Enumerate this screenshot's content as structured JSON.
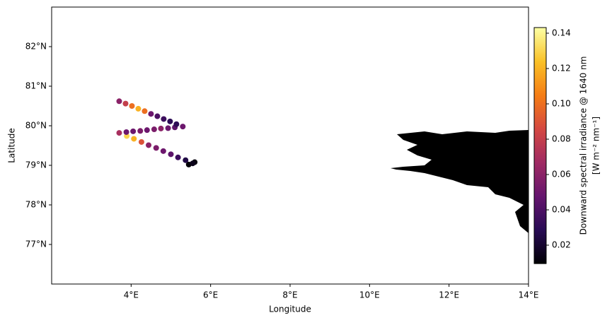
{
  "chart_data": {
    "type": "scatter",
    "xlabel": "Longitude",
    "ylabel": "Latitude",
    "xlim": [
      2,
      14
    ],
    "ylim": [
      76,
      83
    ],
    "xticks": [
      {
        "value": 4,
        "label": "4°E"
      },
      {
        "value": 6,
        "label": "6°E"
      },
      {
        "value": 8,
        "label": "8°E"
      },
      {
        "value": 10,
        "label": "10°E"
      },
      {
        "value": 12,
        "label": "12°E"
      },
      {
        "value": 14,
        "label": "14°E"
      }
    ],
    "yticks": [
      {
        "value": 77,
        "label": "77°N"
      },
      {
        "value": 78,
        "label": "78°N"
      },
      {
        "value": 79,
        "label": "79°N"
      },
      {
        "value": 80,
        "label": "80°N"
      },
      {
        "value": 81,
        "label": "81°N"
      },
      {
        "value": 82,
        "label": "82°N"
      }
    ],
    "colormap": "inferno",
    "colorbar_label": [
      "Downward spectral irradiance @ 1640 nm",
      "[W m⁻² nm⁻¹]"
    ],
    "clim": [
      0.0096,
      0.1432
    ],
    "cticks": [
      0.02,
      0.04,
      0.06,
      0.08,
      {
        "value": 0.1,
        "label": "0.10"
      },
      0.12,
      0.14
    ],
    "x": [
      5.45,
      5.6,
      5.55,
      5.37,
      5.18,
      5.0,
      4.81,
      4.63,
      4.44,
      4.26,
      4.07,
      3.89,
      3.7,
      3.88,
      4.05,
      4.23,
      4.4,
      4.58,
      4.75,
      4.93,
      5.1,
      5.3,
      5.14,
      4.98,
      4.82,
      4.66,
      4.5,
      4.34,
      4.18,
      4.02,
      3.86,
      3.7
    ],
    "y": [
      79.02,
      79.08,
      79.05,
      79.13,
      79.2,
      79.28,
      79.36,
      79.44,
      79.51,
      79.59,
      79.67,
      79.74,
      79.82,
      79.84,
      79.86,
      79.87,
      79.89,
      79.91,
      79.93,
      79.94,
      79.96,
      79.98,
      80.04,
      80.11,
      80.17,
      80.24,
      80.3,
      80.37,
      80.43,
      80.5,
      80.56,
      80.62
    ],
    "values": [
      0.01,
      0.012,
      0.015,
      0.025,
      0.035,
      0.045,
      0.05,
      0.055,
      0.06,
      0.09,
      0.12,
      0.13,
      0.07,
      0.05,
      0.05,
      0.055,
      0.05,
      0.055,
      0.06,
      0.05,
      0.045,
      0.05,
      0.03,
      0.03,
      0.035,
      0.04,
      0.05,
      0.1,
      0.12,
      0.1,
      0.08,
      0.06
    ]
  }
}
